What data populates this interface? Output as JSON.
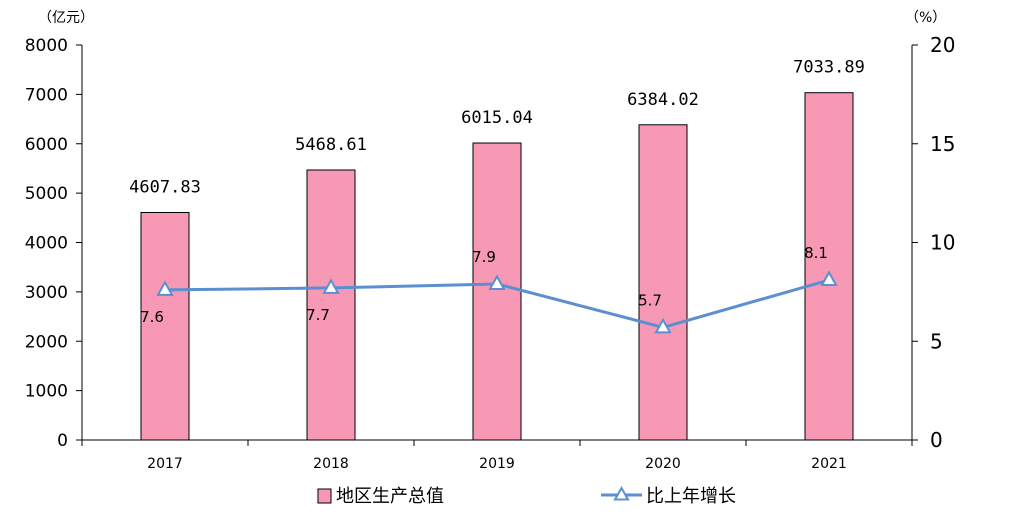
{
  "chart_data": {
    "type": "bar",
    "categories": [
      "2017",
      "2018",
      "2019",
      "2020",
      "2021"
    ],
    "series": [
      {
        "name": "地区生产总值",
        "type": "bar",
        "axis": "left",
        "values": [
          4607.83,
          5468.61,
          6015.04,
          6384.02,
          7033.89
        ],
        "labels": [
          "4607.83",
          "5468.61",
          "6015.04",
          "6384.02",
          "7033.89"
        ],
        "color": "#f799b5"
      },
      {
        "name": "比上年增长",
        "type": "line",
        "axis": "right",
        "values": [
          7.6,
          7.7,
          7.9,
          5.7,
          8.1
        ],
        "labels": [
          "7.6",
          "7.7",
          "7.9",
          "5.7",
          "8.1"
        ],
        "color": "#5b8fd1"
      }
    ],
    "left_axis": {
      "unit": "（亿元）",
      "ylim": [
        0,
        8000
      ],
      "ticks": [
        "0",
        "1000",
        "2000",
        "3000",
        "4000",
        "5000",
        "6000",
        "7000",
        "8000"
      ]
    },
    "right_axis": {
      "unit": "（%）",
      "ylim": [
        0,
        20
      ],
      "ticks": [
        "0",
        "5",
        "10",
        "15",
        "20"
      ]
    },
    "legend_position": "bottom",
    "grid": false
  }
}
